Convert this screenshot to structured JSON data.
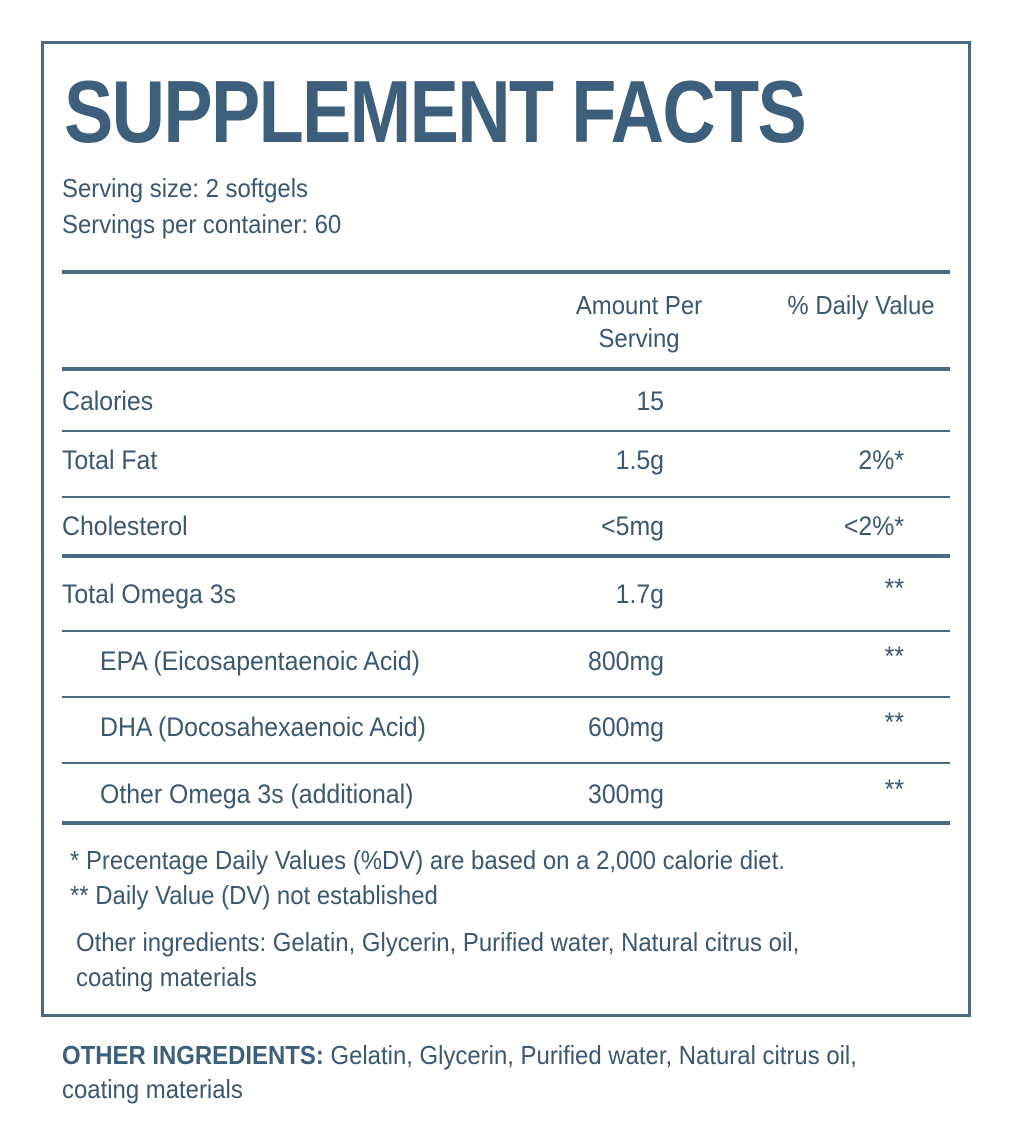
{
  "title": "SUPPLEMENT FACTS",
  "serving_size": "Serving size: 2 softgels",
  "servings_per_container": "Servings per container: 60",
  "header": {
    "amount_line1": "Amount Per",
    "amount_line2": "Serving",
    "daily_value": "% Daily Value"
  },
  "rows": [
    {
      "label": "Calories",
      "amount": "15",
      "dv": ""
    },
    {
      "label": "Total Fat",
      "amount": "1.5g",
      "dv": "2%*"
    },
    {
      "label": "Cholesterol",
      "amount": "<5mg",
      "dv": "<2%*"
    },
    {
      "label": "Total Omega 3s",
      "amount": "1.7g",
      "dv": "**"
    },
    {
      "label": "EPA (Eicosapentaenoic Acid)",
      "amount": "800mg",
      "dv": "**"
    },
    {
      "label": "DHA (Docosahexaenoic Acid)",
      "amount": "600mg",
      "dv": "**"
    },
    {
      "label": "Other Omega 3s (additional)",
      "amount": "300mg",
      "dv": "**"
    }
  ],
  "notes": {
    "dv_note": "* Precentage Daily Values (%DV) are based on a 2,000 calorie diet.",
    "dv_not_established": "** Daily Value (DV) not established",
    "ingredients_line1": "Other ingredients: Gelatin, Glycerin, Purified water, Natural citrus oil,",
    "ingredients_line2": "coating materials"
  },
  "footer": {
    "label": "OTHER INGREDIENTS:",
    "text": " Gelatin, Glycerin, Purified water, Natural citrus oil, coating materials"
  },
  "colors": {
    "primary": "#3d5f7b",
    "text": "#3b5872",
    "rule": "#4a6a84",
    "background": "#ffffff"
  }
}
